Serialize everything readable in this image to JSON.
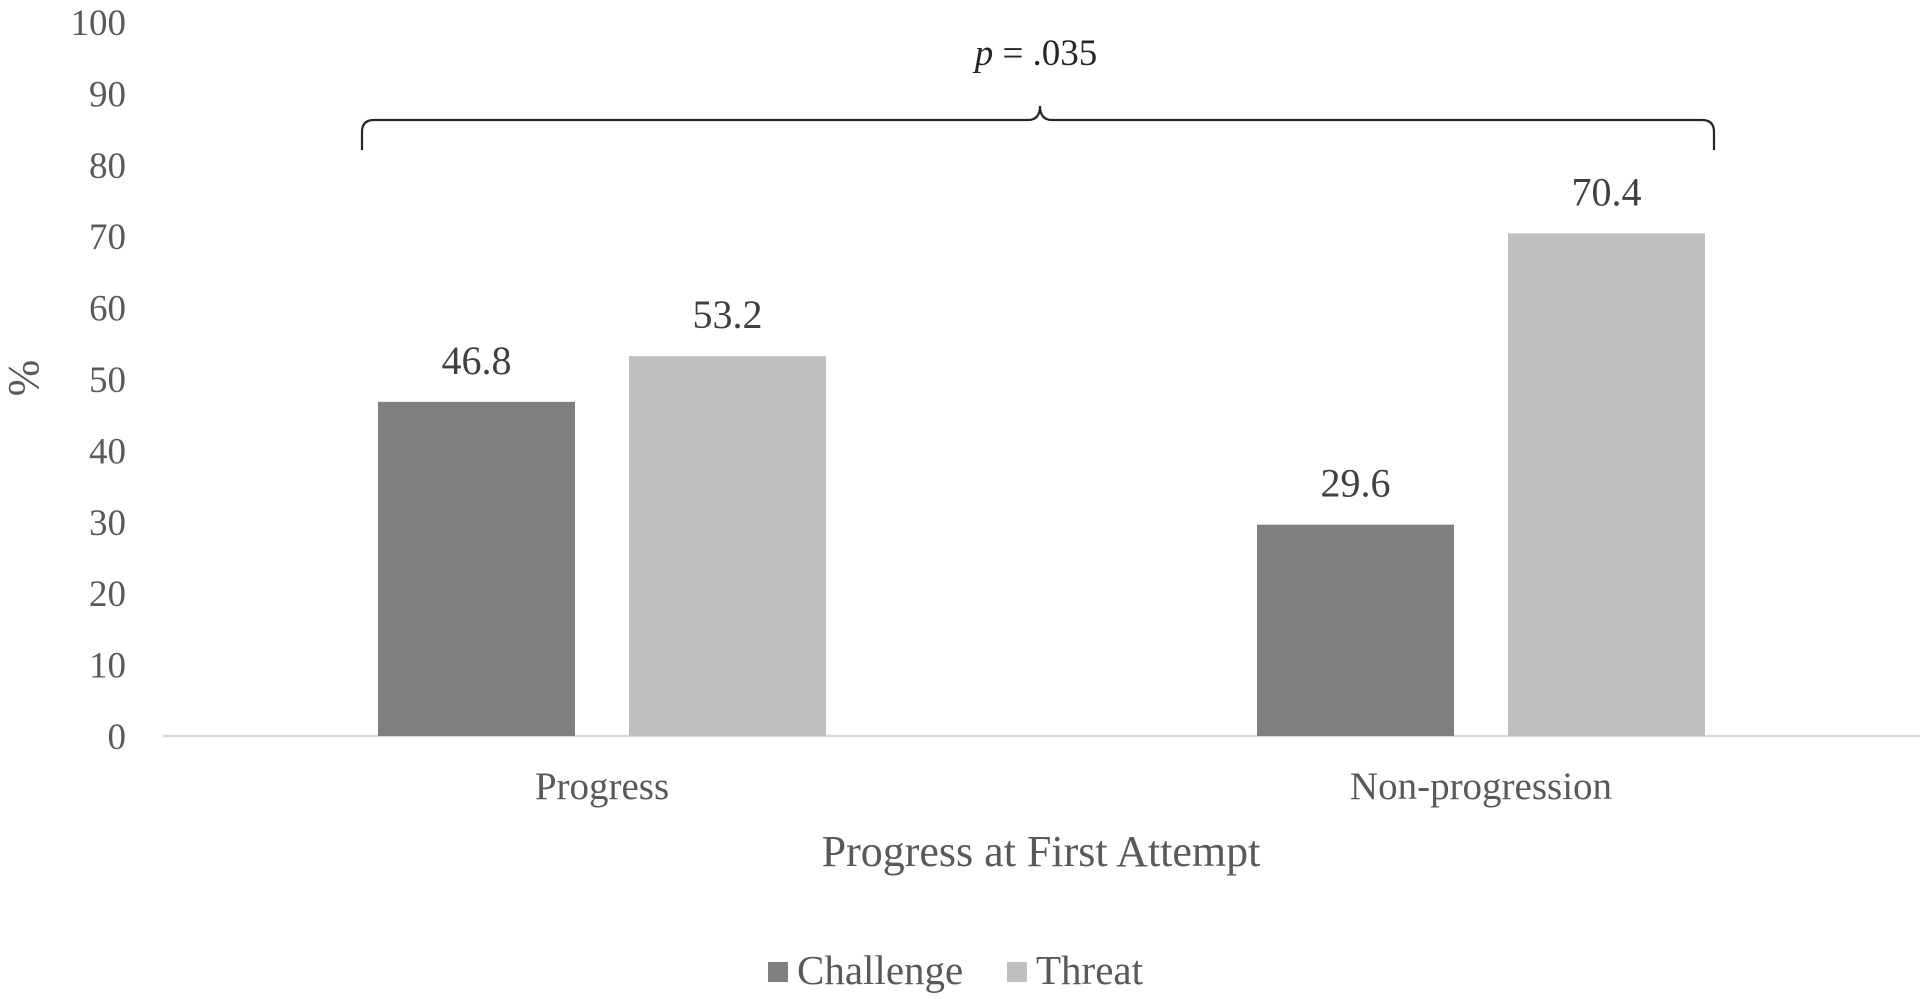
{
  "chart_data": {
    "type": "bar",
    "categories": [
      "Progress",
      "Non-progression"
    ],
    "series": [
      {
        "name": "Challenge",
        "values": [
          46.8,
          29.6
        ],
        "color": "#7f7f7f"
      },
      {
        "name": "Threat",
        "values": [
          53.2,
          70.4
        ],
        "color": "#bfbfbf"
      }
    ],
    "data_labels": [
      [
        "46.8",
        "29.6"
      ],
      [
        "53.2",
        "70.4"
      ]
    ],
    "xlabel": "Progress at First Attempt",
    "ylabel": "%",
    "ylim": [
      0,
      100
    ],
    "yticks": [
      0,
      10,
      20,
      30,
      40,
      50,
      60,
      70,
      80,
      90,
      100
    ],
    "grid": false,
    "legend_position": "bottom",
    "annotation": {
      "p_symbol": "p",
      "text": " = .035"
    },
    "colors": {
      "axis": "#d9d9d9",
      "text": "#595959",
      "bracket": "#262626"
    }
  }
}
